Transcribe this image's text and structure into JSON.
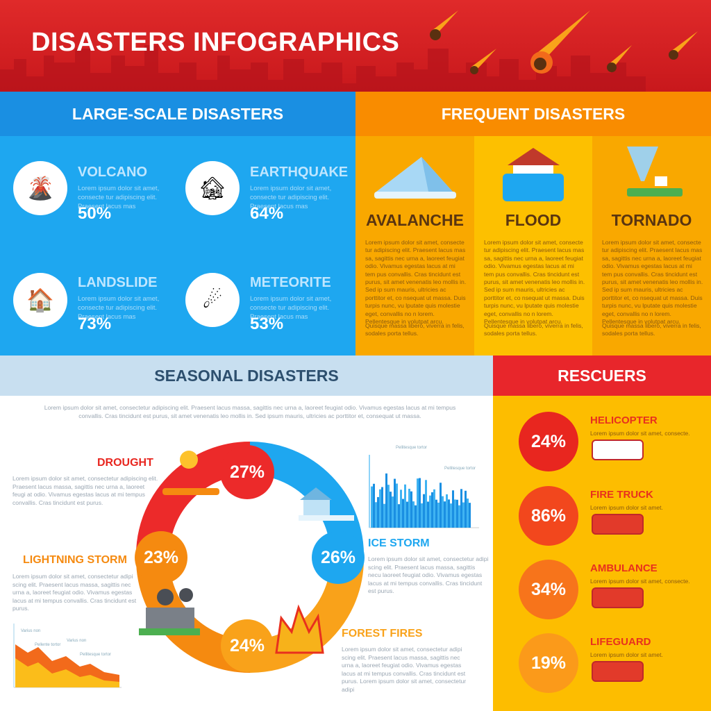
{
  "title": "DISASTERS INFOGRAPHICS",
  "large_scale": {
    "title": "LARGE-SCALE DISASTERS",
    "items": [
      {
        "name": "VOLCANO",
        "text": "Lorem ipsum dolor sit amet, consecte tur adipiscing elit. Praesent lacus mas",
        "pct": "50%",
        "icon": "volcano-icon"
      },
      {
        "name": "EARTHQUAKE",
        "text": "Lorem ipsum dolor sit amet, consecte tur adipiscing elit. Praesent lacus mas",
        "pct": "64%",
        "icon": "earthquake-icon"
      },
      {
        "name": "LANDSLIDE",
        "text": "Lorem ipsum dolor sit amet, consecte tur adipiscing elit. Praesent lacus mas",
        "pct": "73%",
        "icon": "landslide-icon"
      },
      {
        "name": "METEORITE",
        "text": "Lorem ipsum dolor sit amet, consecte tur adipiscing elit. Praesent lacus mas",
        "pct": "53%",
        "icon": "meteorite-icon"
      }
    ]
  },
  "frequent": {
    "title": "FREQUENT DISASTERS",
    "items": [
      {
        "name": "AVALANCHE",
        "text": "Lorem ipsum dolor sit amet, consecte tur adipiscing elit. Praesent lacus mas sa, sagittis nec urna a, laoreet feugiat odio. Vivamus egestas lacus at mi tem pus convallis. Cras tincidunt est purus, sit amet venenatis leo mollis in. Sed ip sum mauris, ultricies ac porttitor et, co nsequat ut massa. Duis turpis nunc, vu lputate quis molestie eget, convallis no n lorem. Pellentesque in volutpat arcu.",
        "text2": "Quisque massa libero, viverra in felis, sodales porta tellus."
      },
      {
        "name": "FLOOD",
        "text": "Lorem ipsum dolor sit amet, consecte tur adipiscing elit. Praesent lacus mas sa, sagittis nec urna a, laoreet feugiat odio. Vivamus egestas lacus at mi tem pus convallis. Cras tincidunt est purus, sit amet venenatis leo mollis in. Sed ip sum mauris, ultricies ac porttitor et, co nsequat ut massa. Duis turpis nunc, vu lputate quis molestie eget, convallis no n lorem. Pellentesque in volutpat arcu.",
        "text2": "Quisque massa libero, viverra in felis, sodales porta tellus."
      },
      {
        "name": "TORNADO",
        "text": "Lorem ipsum dolor sit amet, consecte tur adipiscing elit. Praesent lacus mas sa, sagittis nec urna a, laoreet feugiat odio. Vivamus egestas lacus at mi tem pus convallis. Cras tincidunt est purus, sit amet venenatis leo mollis in. Sed ip sum mauris, ultricies ac porttitor et, co nsequat ut massa. Duis turpis nunc, vu lputate quis molestie eget, convallis no n lorem. Pellentesque in volutpat arcu.",
        "text2": "Quisque massa libero, viverra in felis, sodales porta tellus."
      }
    ]
  },
  "seasonal": {
    "title": "SEASONAL DISASTERS",
    "intro": "Lorem ipsum dolor sit amet, consectetur adipiscing elit. Praesent lacus massa, sagittis nec urna a, laoreet feugiat odio. Vivamus egestas lacus at mi tempus convallis. Cras tincidunt est purus, sit amet venenatis leo mollis in. Sed ipsum mauris, ultricies ac porttitor et, consequat ut massa.",
    "drought": {
      "name": "DROUGHT",
      "pct": "27%",
      "text": "Lorem ipsum dolor sit amet, consectetur adipiscing elit. Praesent lacus massa, sagittis nec urna a, laoreet feugi at odio. Vivamus egestas lacus at mi tempus convallis. Cras tincidunt est purus."
    },
    "ice_storm": {
      "name": "ICE STORM",
      "pct": "26%",
      "text": "Lorem ipsum dolor sit amet, consectetur adipi scing elit. Praesent lacus massa, sagittis necu laoreet feugiat odio. Vivamus egestas lacus at mi tempus convallis. Cras tincidunt est purus."
    },
    "forest_fires": {
      "name": "FOREST FIRES",
      "pct": "24%",
      "text": "Lorem ipsum dolor sit amet, consectetur adipi scing elit. Praesent lacus massa, sagittis nec urna a, laoreet feugiat odio. Vivamus egestas lacus at mi tempus convallis. Cras tincidunt est purus. Lorem ipsum dolor sit amet, consectetur adipi"
    },
    "lightning": {
      "name": "LIGHTNING STORM",
      "pct": "23%",
      "text": "Lorem ipsum dolor sit amet, consectetur adipi scing elit. Praesent lacus massa, sagittis nec urna a, laoreet feugiat odio. Vivamus egestas lacus at mi tempus convallis. Cras tincidunt est purus."
    },
    "bar_labels": [
      "Pellitesque tortor",
      "Pellitesque tortor"
    ],
    "area_labels": [
      "Varius non",
      "Pellente tortor",
      "Varius non",
      "Pellitesque tortor"
    ]
  },
  "rescuers": {
    "title": "RESCUERS",
    "items": [
      {
        "name": "HELICOPTER",
        "pct": "24%",
        "text": "Lorem ipsum dolor sit amet, consecte.",
        "color": "#e8261f",
        "icon": "helicopter-icon"
      },
      {
        "name": "FIRE TRUCK",
        "pct": "86%",
        "text": "Lorem ipsum dolor sit amet.",
        "color": "#f2471d",
        "icon": "fire-truck-icon"
      },
      {
        "name": "AMBULANCE",
        "pct": "34%",
        "text": "Lorem ipsum dolor sit amet, consecte.",
        "color": "#f7741b",
        "icon": "ambulance-icon"
      },
      {
        "name": "LIFEGUARD",
        "pct": "19%",
        "text": "Lorem ipsum dolor sit amet.",
        "color": "#fb9a1a",
        "icon": "lifeguard-icon"
      }
    ]
  },
  "colors": {
    "red": "#e8262b",
    "blue": "#1ea7f0",
    "orange": "#f9a800",
    "yellow": "#fdc000"
  }
}
